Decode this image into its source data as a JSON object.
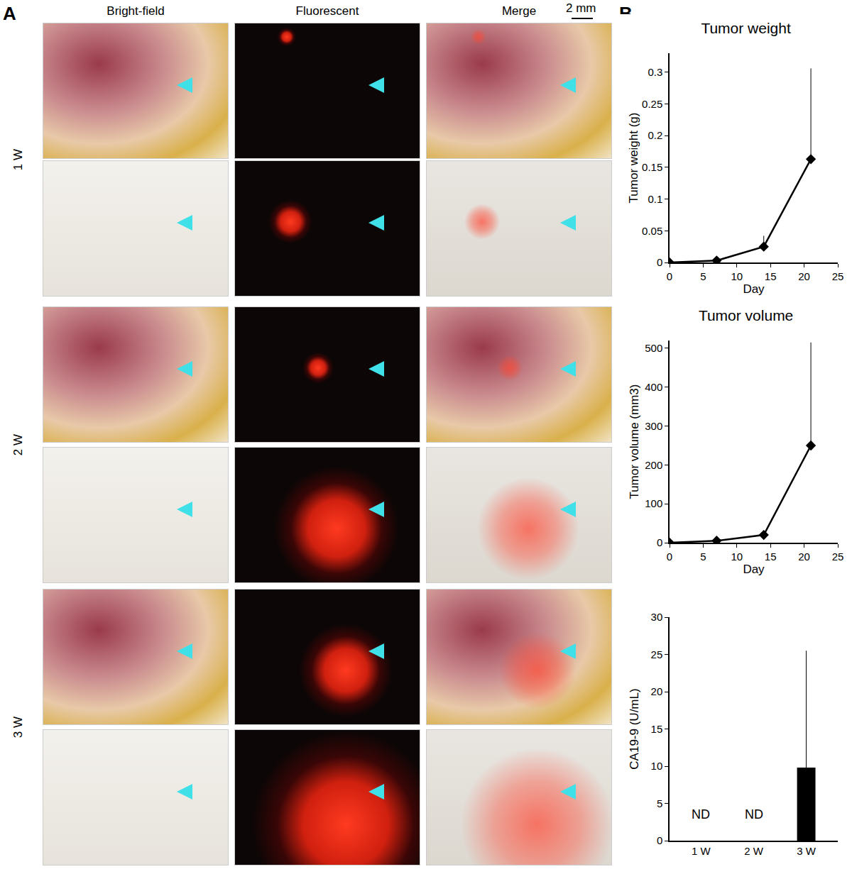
{
  "panel_a": {
    "label": "A",
    "columns": [
      "Bright-field",
      "Fluorescent",
      "Merge"
    ],
    "rows": [
      "1 W",
      "2 W",
      "3 W"
    ],
    "scale_bar": "2 mm"
  },
  "panel_b": {
    "label": "B"
  },
  "chart_data": [
    {
      "type": "line",
      "title": "Tumor weight",
      "x_label": "Day",
      "y_label": "Tumor weight (g)",
      "x": [
        0,
        7,
        14,
        21
      ],
      "values": [
        0,
        0.003,
        0.025,
        0.163
      ],
      "errors": [
        0,
        0.002,
        0.017,
        0.143
      ],
      "color": "#000000",
      "marker": "diamond",
      "line_style": "solid",
      "xlim": [
        0,
        25
      ],
      "xticks": [
        0,
        5,
        10,
        15,
        20,
        25
      ],
      "ylim": [
        0,
        0.33
      ],
      "yticks": [
        0,
        0.05,
        0.1,
        0.15,
        0.2,
        0.25,
        0.3
      ],
      "grid": false
    },
    {
      "type": "line",
      "title": "Tumor volume",
      "x_label": "Day",
      "y_label": "Tumor volume (mm3)",
      "x": [
        0,
        7,
        14,
        21
      ],
      "values": [
        0,
        5,
        20,
        250
      ],
      "errors": [
        0,
        3,
        8,
        265
      ],
      "color": "#000000",
      "marker": "diamond",
      "line_style": "solid",
      "xlim": [
        0,
        25
      ],
      "xticks": [
        0,
        5,
        10,
        15,
        20,
        25
      ],
      "ylim": [
        0,
        520
      ],
      "yticks": [
        0,
        100,
        200,
        300,
        400,
        500
      ],
      "grid": false
    },
    {
      "type": "bar",
      "y_label": "CA19-9 (U/mL)",
      "categories": [
        "1 W",
        "2 W",
        "3 W"
      ],
      "values": [
        null,
        null,
        9.8
      ],
      "errors": [
        null,
        null,
        15.7
      ],
      "color": "#000000",
      "annotations": [
        {
          "category": "1 W",
          "text": "ND"
        },
        {
          "category": "2 W",
          "text": "ND"
        }
      ],
      "ylim": [
        0,
        30
      ],
      "yticks": [
        0,
        5,
        10,
        15,
        20,
        25,
        30
      ],
      "grid": false
    }
  ]
}
